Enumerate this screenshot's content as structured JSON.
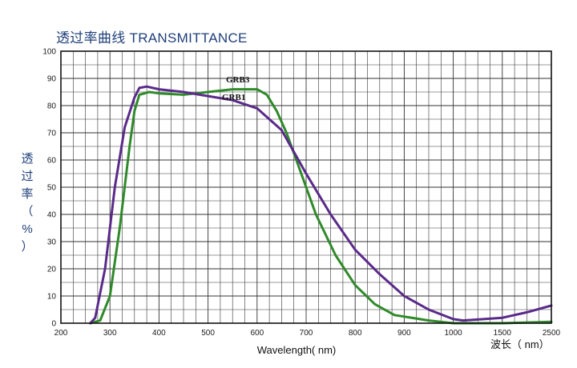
{
  "chart_data": {
    "type": "line",
    "title": "透过率曲线 TRANSMITTANCE",
    "ylabel": [
      "透",
      "过",
      "率",
      "（",
      "%",
      "）"
    ],
    "xlabel": "Wavelength( nm)",
    "xlabel_secondary": "波长（ nm）",
    "ylim": [
      0,
      100
    ],
    "y_ticks": [
      0,
      10,
      20,
      30,
      40,
      50,
      60,
      70,
      80,
      90,
      100
    ],
    "x_ticks": [
      {
        "label": "200",
        "value": 200
      },
      {
        "label": "300",
        "value": 300
      },
      {
        "label": "400",
        "value": 400
      },
      {
        "label": "500",
        "value": 500
      },
      {
        "label": "600",
        "value": 600
      },
      {
        "label": "700",
        "value": 700
      },
      {
        "label": "800",
        "value": 800
      },
      {
        "label": "900",
        "value": 900
      },
      {
        "label": "1000",
        "value": 1000
      },
      {
        "label": "1500",
        "value": 1500
      },
      {
        "label": "2500",
        "value": 2500
      }
    ],
    "grid": true,
    "series": [
      {
        "name": "GRB3",
        "color": "#2f8a2a",
        "points": [
          [
            260,
            0
          ],
          [
            280,
            1
          ],
          [
            300,
            10
          ],
          [
            320,
            35
          ],
          [
            340,
            65
          ],
          [
            350,
            78
          ],
          [
            360,
            84
          ],
          [
            380,
            85
          ],
          [
            400,
            84.5
          ],
          [
            450,
            84
          ],
          [
            500,
            85
          ],
          [
            550,
            86
          ],
          [
            600,
            86
          ],
          [
            620,
            84
          ],
          [
            640,
            78
          ],
          [
            660,
            70
          ],
          [
            680,
            60
          ],
          [
            700,
            50
          ],
          [
            720,
            40
          ],
          [
            760,
            25
          ],
          [
            800,
            14
          ],
          [
            840,
            7
          ],
          [
            880,
            3
          ],
          [
            950,
            1
          ],
          [
            1000,
            0
          ],
          [
            1500,
            0
          ],
          [
            2500,
            0.5
          ]
        ]
      },
      {
        "name": "GRB1",
        "color": "#5a2a8a",
        "points": [
          [
            260,
            0
          ],
          [
            270,
            2
          ],
          [
            290,
            20
          ],
          [
            310,
            50
          ],
          [
            330,
            72
          ],
          [
            350,
            83
          ],
          [
            360,
            86.5
          ],
          [
            375,
            87
          ],
          [
            400,
            86
          ],
          [
            450,
            85
          ],
          [
            500,
            83.5
          ],
          [
            550,
            82
          ],
          [
            600,
            79
          ],
          [
            650,
            71
          ],
          [
            700,
            55
          ],
          [
            750,
            40
          ],
          [
            800,
            27
          ],
          [
            850,
            18
          ],
          [
            900,
            10
          ],
          [
            950,
            5
          ],
          [
            1000,
            1.5
          ],
          [
            1100,
            1
          ],
          [
            1500,
            2
          ],
          [
            2000,
            4
          ],
          [
            2500,
            6.5
          ]
        ]
      }
    ]
  }
}
